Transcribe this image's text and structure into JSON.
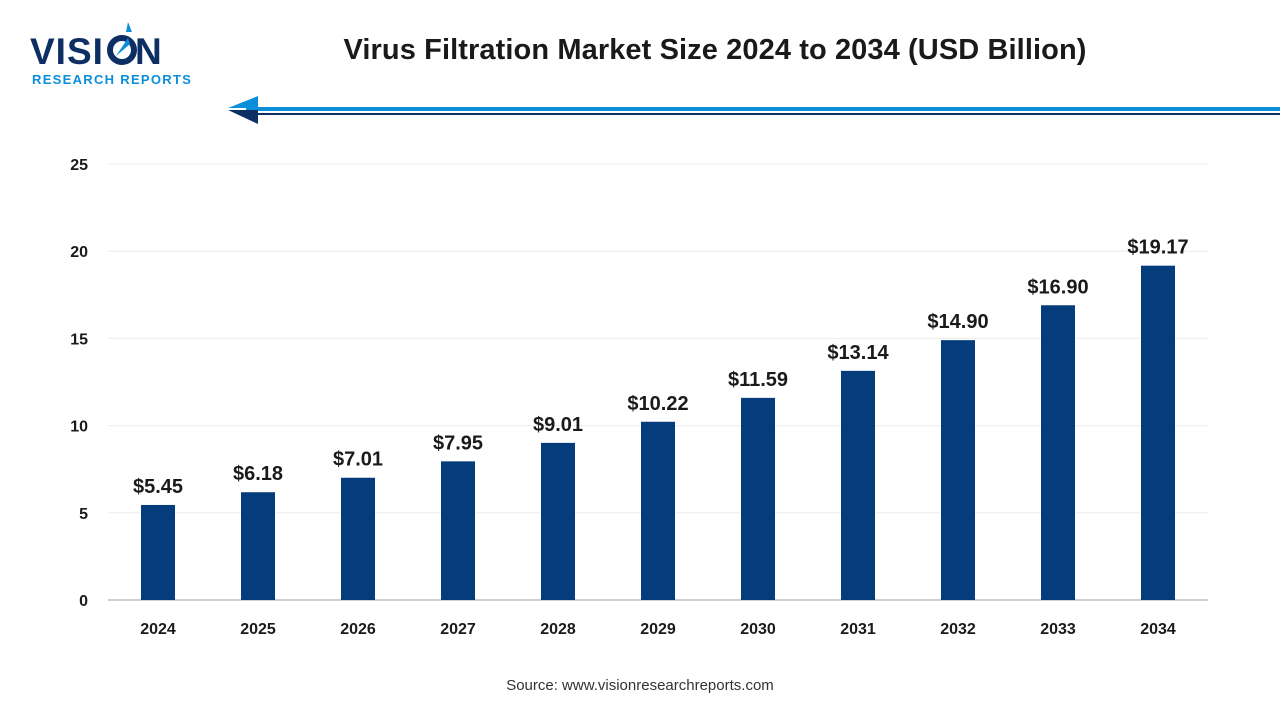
{
  "logo": {
    "wordmark": "VISION",
    "tagline": "RESEARCH REPORTS"
  },
  "colors": {
    "bar": "#053C7C",
    "accent": "#0A8FDB",
    "navy": "#0E2F63",
    "title_text": "#1a1a1a"
  },
  "source": "Source: www.visionresearchreports.com",
  "chart_data": {
    "type": "bar",
    "title": "Virus Filtration Market Size 2024 to 2034 (USD Billion)",
    "xlabel": "",
    "ylabel": "",
    "categories": [
      "2024",
      "2025",
      "2026",
      "2027",
      "2028",
      "2029",
      "2030",
      "2031",
      "2032",
      "2033",
      "2034"
    ],
    "values": [
      5.45,
      6.18,
      7.01,
      7.95,
      9.01,
      10.22,
      11.59,
      13.14,
      14.9,
      16.9,
      19.17
    ],
    "data_labels": [
      "$5.45",
      "$6.18",
      "$7.01",
      "$7.95",
      "$9.01",
      "$10.22",
      "$11.59",
      "$13.14",
      "$14.90",
      "$16.90",
      "$19.17"
    ],
    "ylim": [
      0,
      25
    ],
    "yticks": [
      "0",
      "5",
      "10",
      "15",
      "20",
      "25"
    ],
    "ytick_values": [
      0,
      5,
      10,
      15,
      20,
      25
    ],
    "grid": true,
    "legend": "none"
  }
}
